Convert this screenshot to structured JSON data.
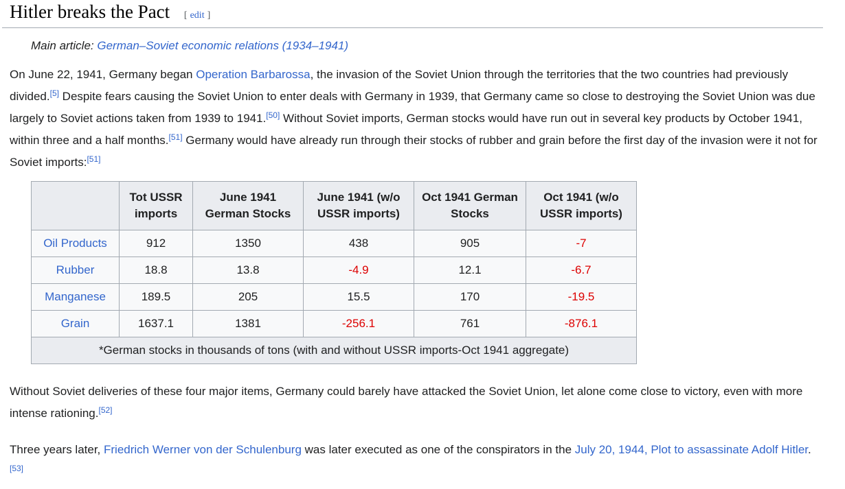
{
  "section": {
    "heading": "Hitler breaks the Pact",
    "edit": {
      "bracket_open": "[",
      "label": "edit",
      "bracket_close": "]"
    }
  },
  "hatnote": {
    "prefix": "Main article: ",
    "link": "German–Soviet economic relations (1934–1941)"
  },
  "paragraphs": {
    "p1": [
      {
        "t": "text",
        "s": "On June 22, 1941, Germany began "
      },
      {
        "t": "link",
        "s": "Operation Barbarossa"
      },
      {
        "t": "text",
        "s": ", the invasion of the Soviet Union through the territories that the two countries had previously divided."
      },
      {
        "t": "ref",
        "s": "[5]"
      },
      {
        "t": "text",
        "s": " Despite fears causing the Soviet Union to enter deals with Germany in 1939, that Germany came so close to destroying the Soviet Union was due largely to Soviet actions taken from 1939 to 1941."
      },
      {
        "t": "ref",
        "s": "[50]"
      },
      {
        "t": "text",
        "s": " Without Soviet imports, German stocks would have run out in several key products by October 1941, within three and a half months."
      },
      {
        "t": "ref",
        "s": "[51]"
      },
      {
        "t": "text",
        "s": " Germany would have already run through their stocks of rubber and grain before the first day of the invasion were it not for Soviet imports:"
      },
      {
        "t": "ref",
        "s": "[51]"
      }
    ],
    "p2": [
      {
        "t": "text",
        "s": "Without Soviet deliveries of these four major items, Germany could barely have attacked the Soviet Union, let alone come close to victory, even with more intense rationing."
      },
      {
        "t": "ref",
        "s": "[52]"
      }
    ],
    "p3": [
      {
        "t": "text",
        "s": "Three years later, "
      },
      {
        "t": "link",
        "s": "Friedrich Werner von der Schulenburg"
      },
      {
        "t": "text",
        "s": " was later executed as one of the conspirators in the "
      },
      {
        "t": "link",
        "s": "July 20, 1944, Plot to assassinate Adolf Hitler"
      },
      {
        "t": "text",
        "s": "."
      },
      {
        "t": "ref",
        "s": "[53]"
      }
    ]
  },
  "table": {
    "headers": [
      "",
      "Tot USSR imports",
      "June 1941 German Stocks",
      "June 1941 (w/o USSR imports)",
      "Oct 1941 German Stocks",
      "Oct 1941 (w/o USSR imports)"
    ],
    "rows": [
      {
        "label": "Oil Products",
        "values": [
          "912",
          "1350",
          "438",
          "905",
          "-7"
        ]
      },
      {
        "label": "Rubber",
        "values": [
          "18.8",
          "13.8",
          "-4.9",
          "12.1",
          "-6.7"
        ]
      },
      {
        "label": "Manganese",
        "values": [
          "189.5",
          "205",
          "15.5",
          "170",
          "-19.5"
        ]
      },
      {
        "label": "Grain",
        "values": [
          "1637.1",
          "1381",
          "-256.1",
          "761",
          "-876.1"
        ]
      }
    ],
    "footnote": "*German stocks in thousands of tons (with and without USSR imports-Oct 1941 aggregate)"
  },
  "colors": {
    "link": "#3366cc",
    "negative_value": "#dd0000",
    "table_header_bg": "#eaecf0",
    "table_cell_bg": "#f8f9fa",
    "table_border": "#a2a9b1",
    "heading_rule": "#a2a9b1",
    "edit_brackets": "#54595d",
    "body_text": "#202122"
  }
}
